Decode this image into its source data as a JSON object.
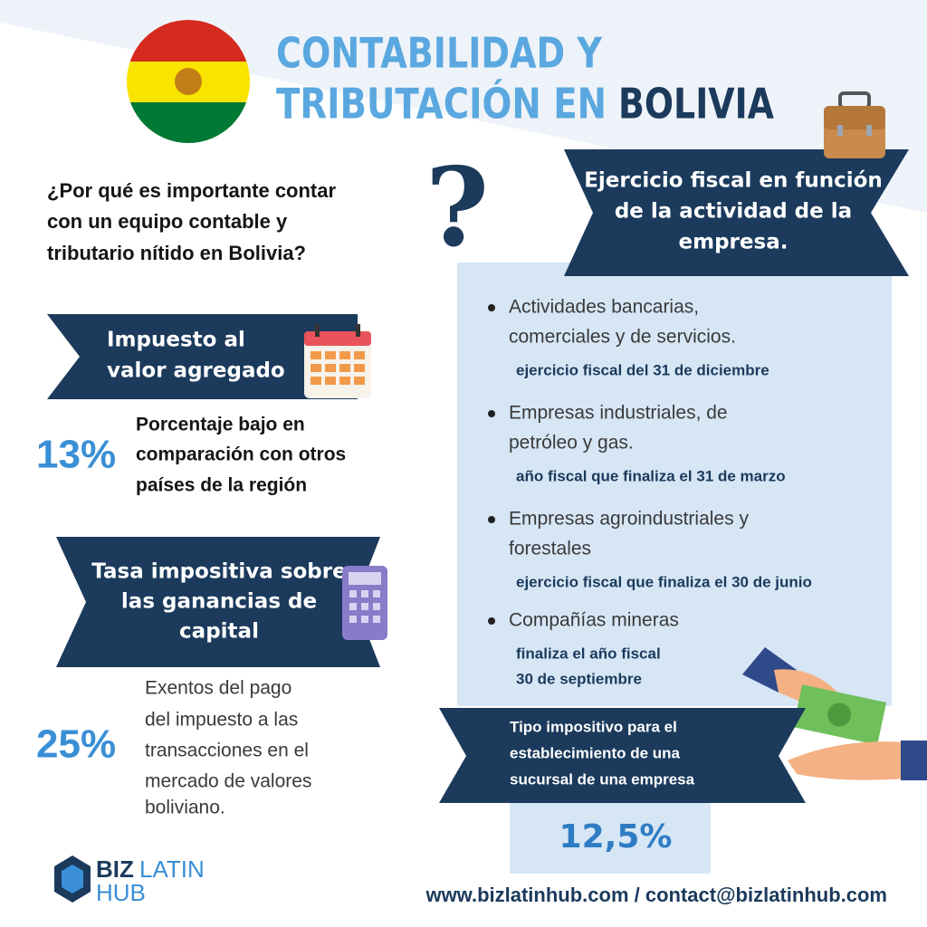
{
  "header": {
    "title_line1": "CONTABILIDAD Y",
    "title_line2": "TRIBUTACIÓN EN",
    "title_highlight": "BOLIVIA"
  },
  "question": [
    "¿Por qué es importante contar",
    "con un equipo contable y",
    "tributario nítido en Bolivia?"
  ],
  "vat": {
    "heading": [
      "Impuesto al",
      "valor agregado"
    ],
    "rate": "13%",
    "text": [
      "Porcentaje bajo en",
      "comparación con otros",
      "países de la región"
    ]
  },
  "capital_gains": {
    "heading": [
      "Tasa impositiva sobre",
      "las ganancias de",
      "capital"
    ],
    "rate": "25%",
    "text": [
      "Exentos del pago",
      "del impuesto a las",
      "transacciones en el",
      "mercado de valores",
      "boliviano."
    ]
  },
  "fiscal_year": {
    "heading": [
      "Ejercicio fiscal en función",
      "de la actividad de la",
      "empresa."
    ],
    "items": [
      {
        "activity": [
          "Actividades bancarias,",
          "comerciales y de servicios."
        ],
        "period": [
          "ejercicio fiscal del 31 de diciembre"
        ]
      },
      {
        "activity": [
          "Empresas industriales, de",
          "petróleo y gas."
        ],
        "period": [
          "año fiscal que finaliza el 31 de marzo"
        ]
      },
      {
        "activity": [
          "Empresas agroindustriales y",
          "forestales"
        ],
        "period": [
          "ejercicio fiscal que finaliza el 30 de junio"
        ]
      },
      {
        "activity": [
          "Compañías mineras"
        ],
        "period": [
          "finaliza el año fiscal",
          "30 de septiembre"
        ]
      }
    ]
  },
  "branch": {
    "heading": [
      "Tipo impositivo para el",
      "establecimiento de una",
      "sucursal de una empresa"
    ],
    "rate": "12,5%"
  },
  "footer": {
    "logo_biz": "BIZ",
    "logo_latin": "LATIN",
    "logo_hub": "HUB",
    "contact": "www.bizlatinhub.com / contact@bizlatinhub.com"
  }
}
